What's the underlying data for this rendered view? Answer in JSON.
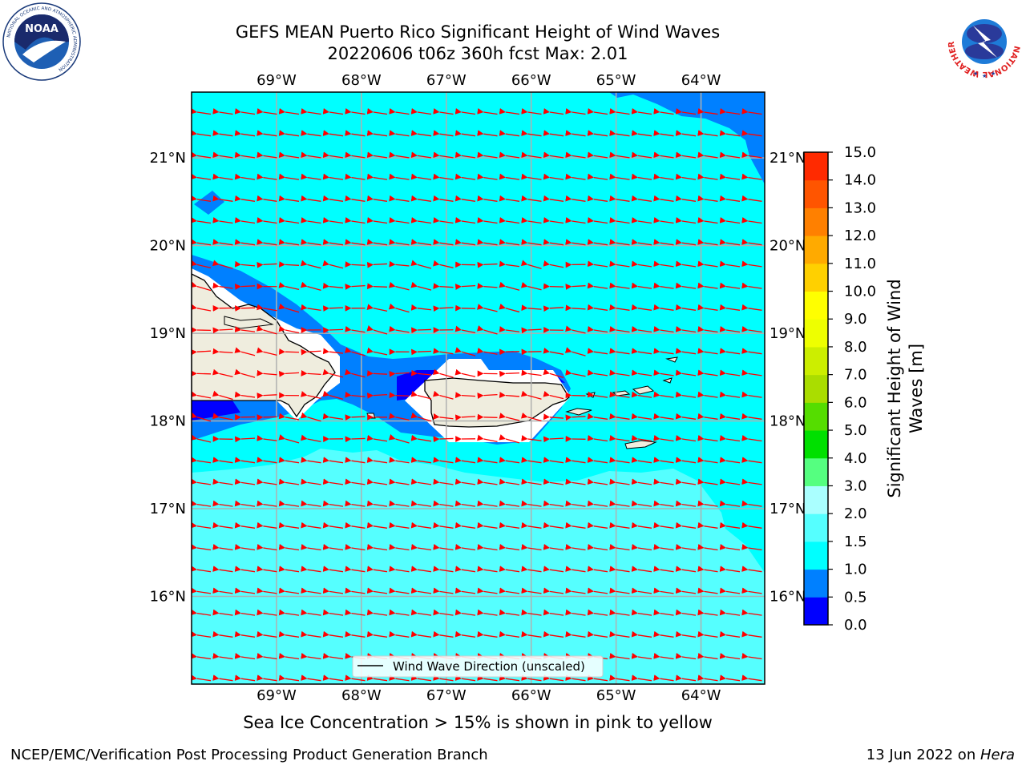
{
  "title_line1": "GEFS MEAN Puerto Rico Significant Height of Wind Waves",
  "title_line2": "20220606 t06z 360h fcst   Max: 2.01",
  "caption": "Sea Ice Concentration > 15% is shown in pink to yellow",
  "footer_left": "NCEP/EMC/Verification Post Processing Product Generation Branch",
  "footer_date": "13 Jun 2022 on ",
  "footer_host": "Hera",
  "legend_label": "Wind Wave Direction (unscaled)",
  "logos": {
    "noaa": {
      "text": "NOAA",
      "ring_text": "NATIONAL OCEANIC AND ATMOSPHERIC ADMINISTRATION",
      "bottom_text": "U.S. DEPARTMENT OF COMMERCE"
    },
    "nws": {
      "ring_text": "NATIONAL WEATHER SERVICE"
    }
  },
  "map": {
    "lon_range": [
      -70.0,
      -63.25
    ],
    "lat_range": [
      15.0,
      21.75
    ],
    "lon_ticks": [
      {
        "value": -69,
        "label": "69°W"
      },
      {
        "value": -68,
        "label": "68°W"
      },
      {
        "value": -67,
        "label": "67°W"
      },
      {
        "value": -66,
        "label": "66°W"
      },
      {
        "value": -65,
        "label": "65°W"
      },
      {
        "value": -64,
        "label": "64°W"
      }
    ],
    "lat_ticks": [
      {
        "value": 16,
        "label": "16°N"
      },
      {
        "value": 17,
        "label": "17°N"
      },
      {
        "value": 18,
        "label": "18°N"
      },
      {
        "value": 19,
        "label": "19°N"
      },
      {
        "value": 20,
        "label": "20°N"
      },
      {
        "value": 21,
        "label": "21°N"
      }
    ],
    "wave_direction": "westward",
    "arrow_color": "#ff0000",
    "land_color": "#efedde"
  },
  "colorbar": {
    "label": "Significant Height of Wind Waves [m]",
    "label_line1": "Significant Height of Wind",
    "label_line2": "Waves [m]",
    "ticks": [
      "0.0",
      "0.5",
      "1.0",
      "1.5",
      "2.0",
      "3.0",
      "4.0",
      "5.0",
      "6.0",
      "7.0",
      "8.0",
      "9.0",
      "10.0",
      "11.0",
      "12.0",
      "13.0",
      "14.0",
      "15.0"
    ],
    "colors": [
      "#0000ff",
      "#0080ff",
      "#00ffff",
      "#55ffff",
      "#aaffff",
      "#55ff80",
      "#00e000",
      "#55dd00",
      "#aadd00",
      "#ccee00",
      "#eeff00",
      "#ffff00",
      "#ffd000",
      "#ffaa00",
      "#ff8000",
      "#ff5500",
      "#ff2a00",
      "#ff0000"
    ]
  }
}
